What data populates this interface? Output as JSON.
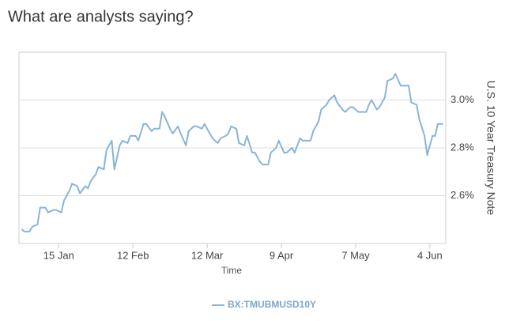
{
  "chart_data": {
    "type": "line",
    "title": "What are analysts saying?",
    "x_label": "Time",
    "y_label": "U.S. 10 Year Treasury Note",
    "x": [
      1,
      2,
      4,
      5,
      7,
      8,
      10,
      11,
      13,
      14,
      16,
      17,
      19,
      20,
      22,
      23,
      25,
      26,
      27,
      29,
      30,
      32,
      33,
      35,
      36,
      38,
      39,
      41,
      42,
      44,
      45,
      47,
      48,
      50,
      51,
      53,
      54,
      55,
      57,
      58,
      60,
      61,
      63,
      64,
      66,
      67,
      69,
      70,
      72,
      73,
      75,
      76,
      78,
      79,
      80,
      82,
      83,
      85,
      86,
      88,
      89,
      91,
      92,
      94,
      95,
      97,
      98,
      100,
      101,
      103,
      104,
      106,
      107,
      108,
      110,
      111,
      113,
      114,
      116,
      117,
      119,
      120,
      122,
      123,
      125,
      126,
      128,
      129,
      131,
      132,
      133,
      135,
      136,
      138,
      139,
      141,
      142,
      144,
      145,
      147,
      148,
      150,
      151,
      153,
      154,
      156,
      157,
      158,
      160
    ],
    "series": [
      {
        "name": "BX:TMUBMUSD10Y",
        "color": "#8ab4d8",
        "values": [
          2.46,
          2.45,
          2.45,
          2.47,
          2.48,
          2.55,
          2.55,
          2.53,
          2.54,
          2.54,
          2.53,
          2.58,
          2.62,
          2.65,
          2.64,
          2.61,
          2.64,
          2.63,
          2.66,
          2.69,
          2.72,
          2.71,
          2.79,
          2.83,
          2.71,
          2.81,
          2.83,
          2.82,
          2.85,
          2.85,
          2.83,
          2.9,
          2.9,
          2.87,
          2.88,
          2.88,
          2.95,
          2.93,
          2.88,
          2.86,
          2.89,
          2.86,
          2.81,
          2.87,
          2.89,
          2.89,
          2.88,
          2.9,
          2.86,
          2.84,
          2.82,
          2.84,
          2.85,
          2.86,
          2.89,
          2.88,
          2.82,
          2.81,
          2.85,
          2.78,
          2.78,
          2.74,
          2.73,
          2.73,
          2.78,
          2.8,
          2.83,
          2.78,
          2.78,
          2.8,
          2.78,
          2.84,
          2.83,
          2.83,
          2.83,
          2.87,
          2.91,
          2.96,
          2.98,
          3.0,
          3.02,
          2.99,
          2.96,
          2.95,
          2.97,
          2.97,
          2.95,
          2.95,
          2.95,
          2.98,
          3.0,
          2.96,
          2.97,
          3.01,
          3.08,
          3.09,
          3.11,
          3.06,
          3.06,
          3.06,
          2.99,
          2.98,
          2.92,
          2.85,
          2.77,
          2.85,
          2.85,
          2.9,
          2.9
        ]
      }
    ],
    "xlim": [
      0,
      161
    ],
    "xticks": [
      {
        "value": 15,
        "label": "15 Jan"
      },
      {
        "value": 43,
        "label": "12 Feb"
      },
      {
        "value": 71,
        "label": "12 Mar"
      },
      {
        "value": 99,
        "label": "9 Apr"
      },
      {
        "value": 127,
        "label": "7 May"
      },
      {
        "value": 155,
        "label": "4 Jun"
      }
    ],
    "ylim": [
      2.4,
      3.2
    ],
    "yticks": [
      {
        "value": 2.6,
        "label": "2.6%"
      },
      {
        "value": 2.8,
        "label": "2.8%"
      },
      {
        "value": 3.0,
        "label": "3.0%"
      }
    ],
    "grid": true,
    "legend": "bottom"
  }
}
